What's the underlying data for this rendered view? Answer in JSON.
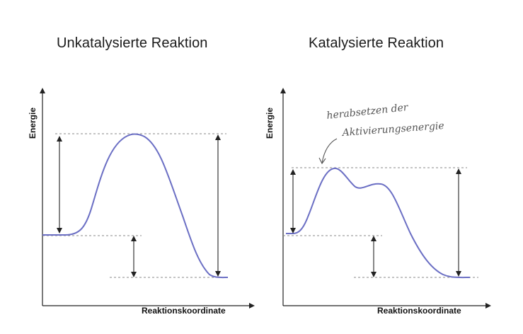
{
  "left_panel": {
    "title": "Unkatalysierte Reaktion",
    "y_axis_label": "Energie",
    "x_axis_label": "Reaktionskoordinate"
  },
  "right_panel": {
    "title": "Katalysierte Reaktion",
    "y_axis_label": "Energie",
    "x_axis_label": "Reaktionskoordinate",
    "annotation_line1": "herabsetzen der",
    "annotation_line2": "Aktivierungsenergie"
  },
  "colors": {
    "curve": "#6b6fc4",
    "axis": "#222222",
    "dashed": "#888888"
  }
}
